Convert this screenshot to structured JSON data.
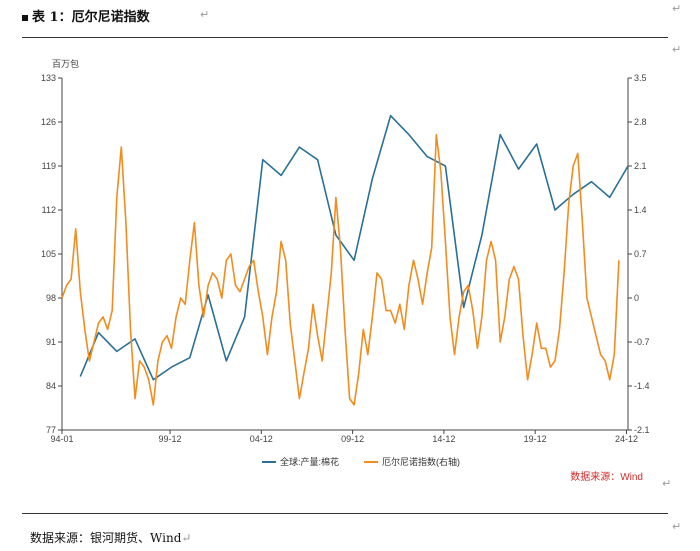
{
  "caption": {
    "bullet": "■",
    "title": "表 1：厄尔尼诺指数",
    "return_mark": "↵"
  },
  "footer": {
    "source": "数据来源：银河期货、Wind",
    "return_mark": "↵"
  },
  "chart_data": {
    "type": "line",
    "title": "",
    "unit_left": "百万包",
    "source_note": "数据来源：Wind",
    "xlim": [
      1994.0,
      2025.0
    ],
    "x_ticks": [
      "94-01",
      "99-12",
      "04-12",
      "09-12",
      "14-12",
      "19-12",
      "24-12"
    ],
    "y_left": {
      "lim": [
        77,
        133
      ],
      "ticks": [
        77,
        84,
        91,
        98,
        105,
        112,
        119,
        126,
        133
      ]
    },
    "y_right": {
      "lim": [
        -2.1,
        3.5
      ],
      "ticks": [
        -2.1,
        -1.4,
        -0.7,
        0,
        0.7,
        1.4,
        2.1,
        2.8,
        3.5
      ]
    },
    "grid": false,
    "legend_position": "bottom-center",
    "series": [
      {
        "name": "全球:产量:棉花",
        "axis": "left",
        "color": "#2a7096",
        "x": [
          1995.0,
          1996.0,
          1997.0,
          1998.0,
          1999.0,
          2000.0,
          2001.0,
          2002.0,
          2003.0,
          2004.0,
          2005.0,
          2006.0,
          2007.0,
          2008.0,
          2009.0,
          2010.0,
          2011.0,
          2012.0,
          2013.0,
          2014.0,
          2015.0,
          2016.0,
          2017.0,
          2018.0,
          2019.0,
          2020.0,
          2021.0,
          2022.0,
          2023.0,
          2024.0,
          2025.0
        ],
        "y": [
          85.5,
          92.5,
          89.5,
          91.5,
          85,
          87,
          88.5,
          98.5,
          88,
          95,
          120,
          117.5,
          122,
          120,
          108,
          104,
          117,
          127,
          124,
          120.5,
          119,
          96.5,
          108,
          124,
          118.5,
          122.5,
          112,
          114.5,
          116.5,
          114,
          119
        ]
      },
      {
        "name": "厄尔尼诺指数(右轴)",
        "axis": "right",
        "color": "#f28c1f",
        "x": [
          1994.0,
          1994.25,
          1994.5,
          1994.75,
          1995.0,
          1995.25,
          1995.5,
          1995.75,
          1996.0,
          1996.25,
          1996.5,
          1996.75,
          1997.0,
          1997.25,
          1997.5,
          1997.75,
          1998.0,
          1998.25,
          1998.5,
          1998.75,
          1999.0,
          1999.25,
          1999.5,
          1999.75,
          2000.0,
          2000.25,
          2000.5,
          2000.75,
          2001.0,
          2001.25,
          2001.5,
          2001.75,
          2002.0,
          2002.25,
          2002.5,
          2002.75,
          2003.0,
          2003.25,
          2003.5,
          2003.75,
          2004.0,
          2004.25,
          2004.5,
          2004.75,
          2005.0,
          2005.25,
          2005.5,
          2005.75,
          2006.0,
          2006.25,
          2006.5,
          2006.75,
          2007.0,
          2007.25,
          2007.5,
          2007.75,
          2008.0,
          2008.25,
          2008.5,
          2008.75,
          2009.0,
          2009.25,
          2009.5,
          2009.75,
          2010.0,
          2010.25,
          2010.5,
          2010.75,
          2011.0,
          2011.25,
          2011.5,
          2011.75,
          2012.0,
          2012.25,
          2012.5,
          2012.75,
          2013.0,
          2013.25,
          2013.5,
          2013.75,
          2014.0,
          2014.25,
          2014.5,
          2014.75,
          2015.0,
          2015.25,
          2015.5,
          2015.75,
          2016.0,
          2016.25,
          2016.5,
          2016.75,
          2017.0,
          2017.25,
          2017.5,
          2017.75,
          2018.0,
          2018.25,
          2018.5,
          2018.75,
          2019.0,
          2019.25,
          2019.5,
          2019.75,
          2020.0,
          2020.25,
          2020.5,
          2020.75,
          2021.0,
          2021.25,
          2021.5,
          2021.75,
          2022.0,
          2022.25,
          2022.5,
          2022.75,
          2023.0,
          2023.25,
          2023.5,
          2023.75,
          2024.0,
          2024.25,
          2024.5
        ],
        "y": [
          0.0,
          0.2,
          0.3,
          1.1,
          0.1,
          -0.5,
          -1.0,
          -0.7,
          -0.4,
          -0.3,
          -0.5,
          -0.2,
          1.6,
          2.4,
          1.2,
          -0.5,
          -1.6,
          -1.0,
          -1.1,
          -1.3,
          -1.7,
          -1.0,
          -0.7,
          -0.6,
          -0.8,
          -0.3,
          0.0,
          -0.1,
          0.6,
          1.2,
          0.2,
          -0.3,
          0.2,
          0.4,
          0.3,
          0.0,
          0.6,
          0.7,
          0.2,
          0.1,
          0.3,
          0.5,
          0.6,
          0.1,
          -0.3,
          -0.9,
          -0.3,
          0.1,
          0.9,
          0.6,
          -0.4,
          -1.0,
          -1.6,
          -1.2,
          -0.8,
          -0.1,
          -0.6,
          -1.0,
          -0.3,
          0.4,
          1.6,
          0.8,
          -0.5,
          -1.6,
          -1.7,
          -1.2,
          -0.5,
          -0.9,
          -0.3,
          0.4,
          0.3,
          -0.2,
          -0.2,
          -0.4,
          -0.1,
          -0.5,
          0.2,
          0.6,
          0.3,
          -0.1,
          0.4,
          0.8,
          2.6,
          2.0,
          0.9,
          -0.3,
          -0.9,
          -0.3,
          0.1,
          0.2,
          -0.2,
          -0.8,
          -0.3,
          0.6,
          0.9,
          0.6,
          -0.7,
          -0.3,
          0.3,
          0.5,
          0.3,
          -0.6,
          -1.3,
          -0.9,
          -0.4,
          -0.8,
          -0.8,
          -1.1,
          -1.0,
          -0.5,
          0.4,
          1.5,
          2.1,
          2.3,
          1.2,
          0.0,
          -0.3,
          -0.6,
          -0.9,
          -1.0,
          -1.3,
          -0.9,
          0.6
        ]
      }
    ]
  }
}
